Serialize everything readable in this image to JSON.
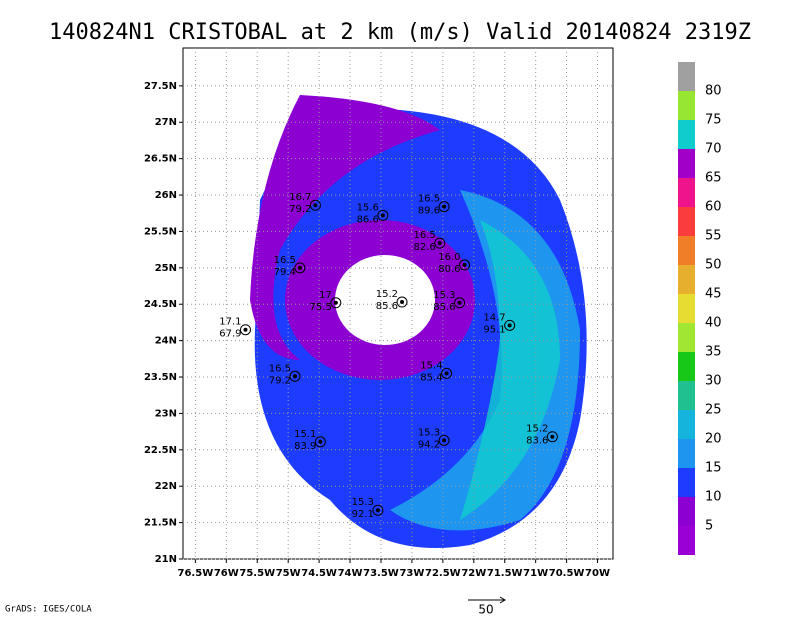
{
  "chart_data": {
    "type": "station",
    "title": "140824N1 CRISTOBAL at 2 km (m/s) Valid 20140824 2319Z",
    "credit": "GrADS: IGES/COLA",
    "vector_scale": "50",
    "xlim": [
      -76.7,
      -69.75
    ],
    "ylim": [
      21,
      28.02
    ],
    "grid": true,
    "xticks": [
      {
        "value": -76.5,
        "label": "76.5W"
      },
      {
        "value": -76,
        "label": "76W"
      },
      {
        "value": -75.5,
        "label": "75.5W"
      },
      {
        "value": -75,
        "label": "75W"
      },
      {
        "value": -74.5,
        "label": "74.5W"
      },
      {
        "value": -74,
        "label": "74W"
      },
      {
        "value": -73.5,
        "label": "73.5W"
      },
      {
        "value": -73,
        "label": "73W"
      },
      {
        "value": -72.5,
        "label": "72.5W"
      },
      {
        "value": -72,
        "label": "72W"
      },
      {
        "value": -71.5,
        "label": "71.5W"
      },
      {
        "value": -71,
        "label": "71W"
      },
      {
        "value": -70.5,
        "label": "70.5W"
      },
      {
        "value": -70,
        "label": "70W"
      }
    ],
    "yticks": [
      {
        "value": 21,
        "label": "21N"
      },
      {
        "value": 21.5,
        "label": "21.5N"
      },
      {
        "value": 22,
        "label": "22N"
      },
      {
        "value": 22.5,
        "label": "22.5N"
      },
      {
        "value": 23,
        "label": "23N"
      },
      {
        "value": 23.5,
        "label": "23.5N"
      },
      {
        "value": 24,
        "label": "24N"
      },
      {
        "value": 24.5,
        "label": "24.5N"
      },
      {
        "value": 25,
        "label": "25N"
      },
      {
        "value": 25.5,
        "label": "25.5N"
      },
      {
        "value": 26,
        "label": "26N"
      },
      {
        "value": 26.5,
        "label": "26.5N"
      },
      {
        "value": 27,
        "label": "27N"
      },
      {
        "value": 27.5,
        "label": "27.5N"
      }
    ],
    "colorbar": {
      "levels": [
        80,
        75,
        70,
        65,
        60,
        55,
        50,
        45,
        40,
        35,
        30,
        25,
        20,
        15,
        10,
        5
      ],
      "colors": [
        "#a0a0a0",
        "#96e632",
        "#10cdcd",
        "#a000c8",
        "#f0148c",
        "#fa3c3c",
        "#f07d28",
        "#e6af2d",
        "#e6dc32",
        "#a0e632",
        "#18c818",
        "#20c090",
        "#14b4dc",
        "#1e96f0",
        "#1e3cff",
        "#8c00d2",
        "#9a00d6"
      ]
    },
    "stations": [
      {
        "lon": -74.56,
        "lat": 25.86,
        "top": "16.7",
        "bottom": "79.2"
      },
      {
        "lon": -73.47,
        "lat": 25.72,
        "top": "15.6",
        "bottom": "86.6"
      },
      {
        "lon": -72.48,
        "lat": 25.84,
        "top": "16.5",
        "bottom": "89.6"
      },
      {
        "lon": -72.55,
        "lat": 25.34,
        "top": "16.5",
        "bottom": "82.6"
      },
      {
        "lon": -74.81,
        "lat": 25.0,
        "top": "16.5",
        "bottom": "79.4"
      },
      {
        "lon": -72.15,
        "lat": 25.04,
        "top": "16.0",
        "bottom": "80.6"
      },
      {
        "lon": -74.23,
        "lat": 24.52,
        "top": "17",
        "bottom": "75.5"
      },
      {
        "lon": -73.16,
        "lat": 24.53,
        "top": "15.2",
        "bottom": "85.6"
      },
      {
        "lon": -72.23,
        "lat": 24.52,
        "top": "15.3",
        "bottom": "85.6"
      },
      {
        "lon": -71.42,
        "lat": 24.21,
        "top": "14.7",
        "bottom": "95.1"
      },
      {
        "lon": -75.69,
        "lat": 24.15,
        "top": "17.1",
        "bottom": "67.9"
      },
      {
        "lon": -74.89,
        "lat": 23.51,
        "top": "16.5",
        "bottom": "79.2"
      },
      {
        "lon": -72.44,
        "lat": 23.55,
        "top": "15.4",
        "bottom": "85.4"
      },
      {
        "lon": -74.48,
        "lat": 22.61,
        "top": "15.1",
        "bottom": "83.9"
      },
      {
        "lon": -72.48,
        "lat": 22.63,
        "top": "15.3",
        "bottom": "94.2"
      },
      {
        "lon": -70.73,
        "lat": 22.68,
        "top": "15.2",
        "bottom": "83.6"
      },
      {
        "lon": -73.55,
        "lat": 21.67,
        "top": "15.3",
        "bottom": "92.1"
      }
    ]
  }
}
